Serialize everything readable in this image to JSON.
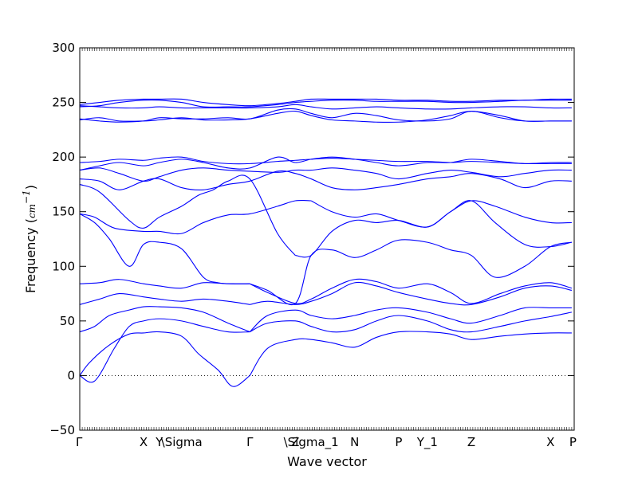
{
  "chart_data": {
    "type": "line",
    "xlabel": "Wave vector",
    "ylabel": "Frequency (",
    "ylabel_unit": "cm",
    "ylabel_exponent": "−1",
    "ylabel_close": ")",
    "ylim": [
      -50,
      300
    ],
    "yticks": [
      -50,
      0,
      50,
      100,
      150,
      200,
      250,
      300
    ],
    "xlim": [
      0,
      1
    ],
    "xticks": [
      {
        "label": "Γ",
        "x": 0.0
      },
      {
        "label": "X",
        "x": 0.129
      },
      {
        "label": "Y",
        "x": 0.161
      },
      {
        "label": "\\Sigma",
        "x": 0.206
      },
      {
        "label": "Γ",
        "x": 0.344
      },
      {
        "label": "Z",
        "x": 0.436
      },
      {
        "label": "\\Sigma_1",
        "x": 0.468
      },
      {
        "label": "N",
        "x": 0.556
      },
      {
        "label": "P",
        "x": 0.645
      },
      {
        "label": "Y_1",
        "x": 0.703
      },
      {
        "label": "Z",
        "x": 0.792
      },
      {
        "label": "X",
        "x": 0.952
      },
      {
        "label": "P",
        "x": 0.995
      }
    ],
    "zero_line": {
      "y": 0,
      "style": "dotted"
    },
    "line_color": "#0000ff",
    "series": [
      {
        "x": [
          0,
          0.02,
          0.06,
          0.1,
          0.129,
          0.161,
          0.206,
          0.24,
          0.28,
          0.31,
          0.344
        ],
        "y": [
          0,
          12,
          28,
          38,
          39,
          40,
          36,
          20,
          5,
          -10,
          0
        ]
      },
      {
        "x": [
          0.344,
          0.38,
          0.436,
          0.468,
          0.51,
          0.556,
          0.6,
          0.645,
          0.703,
          0.75,
          0.792,
          0.85,
          0.9,
          0.952,
          0.995
        ],
        "y": [
          0,
          25,
          33,
          33,
          30,
          26,
          35,
          40,
          40,
          38,
          33,
          36,
          38,
          39,
          39
        ]
      },
      {
        "x": [
          0,
          0.03,
          0.07,
          0.1,
          0.129,
          0.161,
          0.206,
          0.25,
          0.3,
          0.344
        ],
        "y": [
          0,
          -5,
          25,
          45,
          50,
          52,
          50,
          45,
          40,
          40
        ]
      },
      {
        "x": [
          0.344,
          0.38,
          0.436,
          0.468,
          0.51,
          0.556,
          0.6,
          0.645,
          0.703,
          0.75,
          0.792,
          0.85,
          0.9,
          0.952,
          0.995
        ],
        "y": [
          40,
          48,
          50,
          45,
          40,
          42,
          50,
          55,
          50,
          42,
          40,
          45,
          50,
          54,
          58
        ]
      },
      {
        "x": [
          0,
          0.03,
          0.06,
          0.1,
          0.129,
          0.161,
          0.206,
          0.25,
          0.3,
          0.344
        ],
        "y": [
          40,
          45,
          55,
          60,
          63,
          63,
          62,
          58,
          48,
          40
        ]
      },
      {
        "x": [
          0.344,
          0.38,
          0.436,
          0.468,
          0.51,
          0.556,
          0.6,
          0.645,
          0.703,
          0.75,
          0.792,
          0.85,
          0.9,
          0.952,
          0.995
        ],
        "y": [
          40,
          55,
          60,
          55,
          52,
          55,
          60,
          62,
          58,
          52,
          48,
          55,
          62,
          62,
          62
        ]
      },
      {
        "x": [
          0,
          0.04,
          0.08,
          0.129,
          0.161,
          0.206,
          0.25,
          0.3,
          0.344
        ],
        "y": [
          65,
          70,
          75,
          72,
          70,
          68,
          70,
          68,
          65
        ]
      },
      {
        "x": [
          0.344,
          0.38,
          0.436,
          0.468,
          0.51,
          0.556,
          0.6,
          0.645,
          0.703,
          0.75,
          0.792,
          0.85,
          0.9,
          0.952,
          0.995
        ],
        "y": [
          65,
          68,
          65,
          68,
          75,
          85,
          82,
          76,
          70,
          66,
          65,
          72,
          80,
          82,
          78
        ]
      },
      {
        "x": [
          0,
          0.04,
          0.08,
          0.129,
          0.161,
          0.206,
          0.25,
          0.3,
          0.344
        ],
        "y": [
          84,
          85,
          88,
          84,
          82,
          80,
          85,
          84,
          84
        ]
      },
      {
        "x": [
          0.344,
          0.38,
          0.436,
          0.468,
          0.51,
          0.556,
          0.6,
          0.645,
          0.703,
          0.75,
          0.792,
          0.85,
          0.9,
          0.952,
          0.995
        ],
        "y": [
          84,
          76,
          66,
          70,
          80,
          88,
          86,
          80,
          84,
          76,
          66,
          75,
          82,
          85,
          80
        ]
      },
      {
        "x": [
          0,
          0.03,
          0.06,
          0.1,
          0.129,
          0.161,
          0.206,
          0.25,
          0.28,
          0.31,
          0.344
        ],
        "y": [
          148,
          140,
          125,
          100,
          120,
          122,
          116,
          90,
          85,
          84,
          84
        ]
      },
      {
        "x": [
          0.344,
          0.38,
          0.436,
          0.468,
          0.51,
          0.556,
          0.6,
          0.645,
          0.703,
          0.75,
          0.792,
          0.84,
          0.9,
          0.952,
          0.995
        ],
        "y": [
          84,
          78,
          66,
          110,
          115,
          108,
          115,
          124,
          122,
          115,
          110,
          90,
          100,
          118,
          122
        ]
      },
      {
        "x": [
          0,
          0.03,
          0.07,
          0.129,
          0.161,
          0.206,
          0.25,
          0.3,
          0.344,
          0.4,
          0.436,
          0.468
        ],
        "y": [
          148,
          145,
          135,
          132,
          132,
          130,
          140,
          147,
          148,
          155,
          160,
          160
        ]
      },
      {
        "x": [
          0.468,
          0.51,
          0.556,
          0.6,
          0.645,
          0.703,
          0.75,
          0.792,
          0.84,
          0.9,
          0.952,
          0.995
        ],
        "y": [
          160,
          150,
          145,
          148,
          142,
          136,
          150,
          160,
          155,
          145,
          140,
          140
        ]
      },
      {
        "x": [
          0,
          0.04,
          0.1,
          0.129,
          0.161,
          0.206,
          0.24,
          0.27,
          0.3,
          0.344,
          0.4,
          0.436
        ],
        "y": [
          175,
          168,
          142,
          135,
          145,
          155,
          165,
          170,
          178,
          180,
          130,
          110
        ]
      },
      {
        "x": [
          0.436,
          0.468,
          0.51,
          0.556,
          0.6,
          0.645,
          0.703,
          0.75,
          0.792,
          0.84,
          0.9,
          0.952,
          0.995
        ],
        "y": [
          110,
          110,
          132,
          142,
          140,
          142,
          136,
          150,
          160,
          140,
          120,
          118,
          122
        ]
      },
      {
        "x": [
          0,
          0.04,
          0.08,
          0.129,
          0.161,
          0.206,
          0.25,
          0.3,
          0.344,
          0.4,
          0.436,
          0.468,
          0.51,
          0.556,
          0.6,
          0.645,
          0.703,
          0.75,
          0.792,
          0.85,
          0.9,
          0.952,
          0.995
        ],
        "y": [
          180,
          178,
          170,
          178,
          180,
          172,
          170,
          175,
          178,
          187,
          185,
          180,
          172,
          170,
          172,
          175,
          180,
          182,
          185,
          180,
          172,
          178,
          178
        ]
      },
      {
        "x": [
          0,
          0.04,
          0.08,
          0.129,
          0.161,
          0.206,
          0.25,
          0.3,
          0.344,
          0.4,
          0.436,
          0.468,
          0.51,
          0.556,
          0.6,
          0.645,
          0.703,
          0.75,
          0.792,
          0.85,
          0.9,
          0.952,
          0.995
        ],
        "y": [
          188,
          190,
          185,
          178,
          182,
          188,
          190,
          188,
          187,
          186,
          188,
          188,
          190,
          188,
          185,
          180,
          185,
          188,
          186,
          182,
          185,
          188,
          188
        ]
      },
      {
        "x": [
          0,
          0.04,
          0.08,
          0.129,
          0.161,
          0.206,
          0.25,
          0.3,
          0.344,
          0.4,
          0.436,
          0.468,
          0.51,
          0.556,
          0.6,
          0.645,
          0.703,
          0.75,
          0.792,
          0.85,
          0.9,
          0.952,
          0.995
        ],
        "y": [
          188,
          192,
          195,
          192,
          195,
          198,
          195,
          190,
          190,
          200,
          195,
          198,
          200,
          198,
          195,
          192,
          195,
          195,
          198,
          196,
          194,
          195,
          195
        ]
      },
      {
        "x": [
          0,
          0.04,
          0.08,
          0.129,
          0.161,
          0.206,
          0.25,
          0.3,
          0.344,
          0.4,
          0.436,
          0.468,
          0.51,
          0.556,
          0.6,
          0.645,
          0.703,
          0.75,
          0.792,
          0.85,
          0.9,
          0.952,
          0.995
        ],
        "y": [
          195,
          196,
          198,
          197,
          199,
          200,
          196,
          194,
          194,
          196,
          197,
          198,
          199,
          198,
          197,
          196,
          196,
          195,
          196,
          195,
          194,
          194,
          194
        ]
      },
      {
        "x": [
          0,
          0.04,
          0.08,
          0.129,
          0.161,
          0.206,
          0.25,
          0.3,
          0.344,
          0.4,
          0.436,
          0.468,
          0.51,
          0.556,
          0.6,
          0.645,
          0.703,
          0.75,
          0.792,
          0.85,
          0.9,
          0.952,
          0.995
        ],
        "y": [
          234,
          236,
          233,
          233,
          234,
          236,
          234,
          234,
          235,
          240,
          242,
          238,
          234,
          233,
          232,
          232,
          234,
          238,
          242,
          238,
          233,
          233,
          233
        ]
      },
      {
        "x": [
          0,
          0.04,
          0.08,
          0.129,
          0.161,
          0.206,
          0.25,
          0.3,
          0.344,
          0.4,
          0.436,
          0.468,
          0.51,
          0.556,
          0.6,
          0.645,
          0.703,
          0.75,
          0.792,
          0.85,
          0.9,
          0.952,
          0.995
        ],
        "y": [
          235,
          233,
          232,
          233,
          236,
          235,
          235,
          236,
          235,
          243,
          244,
          240,
          236,
          240,
          238,
          234,
          233,
          235,
          242,
          236,
          233,
          233,
          233
        ]
      },
      {
        "x": [
          0,
          0.04,
          0.08,
          0.129,
          0.161,
          0.206,
          0.25,
          0.3,
          0.344,
          0.4,
          0.436,
          0.468,
          0.51,
          0.556,
          0.6,
          0.645,
          0.703,
          0.75,
          0.792,
          0.85,
          0.9,
          0.952,
          0.995
        ],
        "y": [
          246,
          247,
          250,
          252,
          252,
          250,
          246,
          246,
          246,
          248,
          250,
          251,
          252,
          252,
          251,
          251,
          251,
          250,
          250,
          251,
          252,
          252,
          252
        ]
      },
      {
        "x": [
          0,
          0.04,
          0.08,
          0.129,
          0.161,
          0.206,
          0.25,
          0.3,
          0.344,
          0.4,
          0.436,
          0.468,
          0.51,
          0.556,
          0.6,
          0.645,
          0.703,
          0.75,
          0.792,
          0.85,
          0.9,
          0.952,
          0.995
        ],
        "y": [
          247,
          246,
          245,
          245,
          246,
          245,
          245,
          245,
          245,
          246,
          248,
          246,
          244,
          245,
          246,
          245,
          244,
          244,
          245,
          246,
          246,
          245,
          245
        ]
      },
      {
        "x": [
          0,
          0.04,
          0.08,
          0.129,
          0.161,
          0.206,
          0.25,
          0.3,
          0.344,
          0.4,
          0.436,
          0.468,
          0.51,
          0.556,
          0.6,
          0.645,
          0.703,
          0.75,
          0.792,
          0.85,
          0.9,
          0.952,
          0.995
        ],
        "y": [
          248,
          250,
          252,
          253,
          253,
          253,
          250,
          248,
          247,
          249,
          251,
          253,
          253,
          253,
          253,
          252,
          252,
          251,
          251,
          252,
          252,
          253,
          253
        ]
      }
    ]
  }
}
